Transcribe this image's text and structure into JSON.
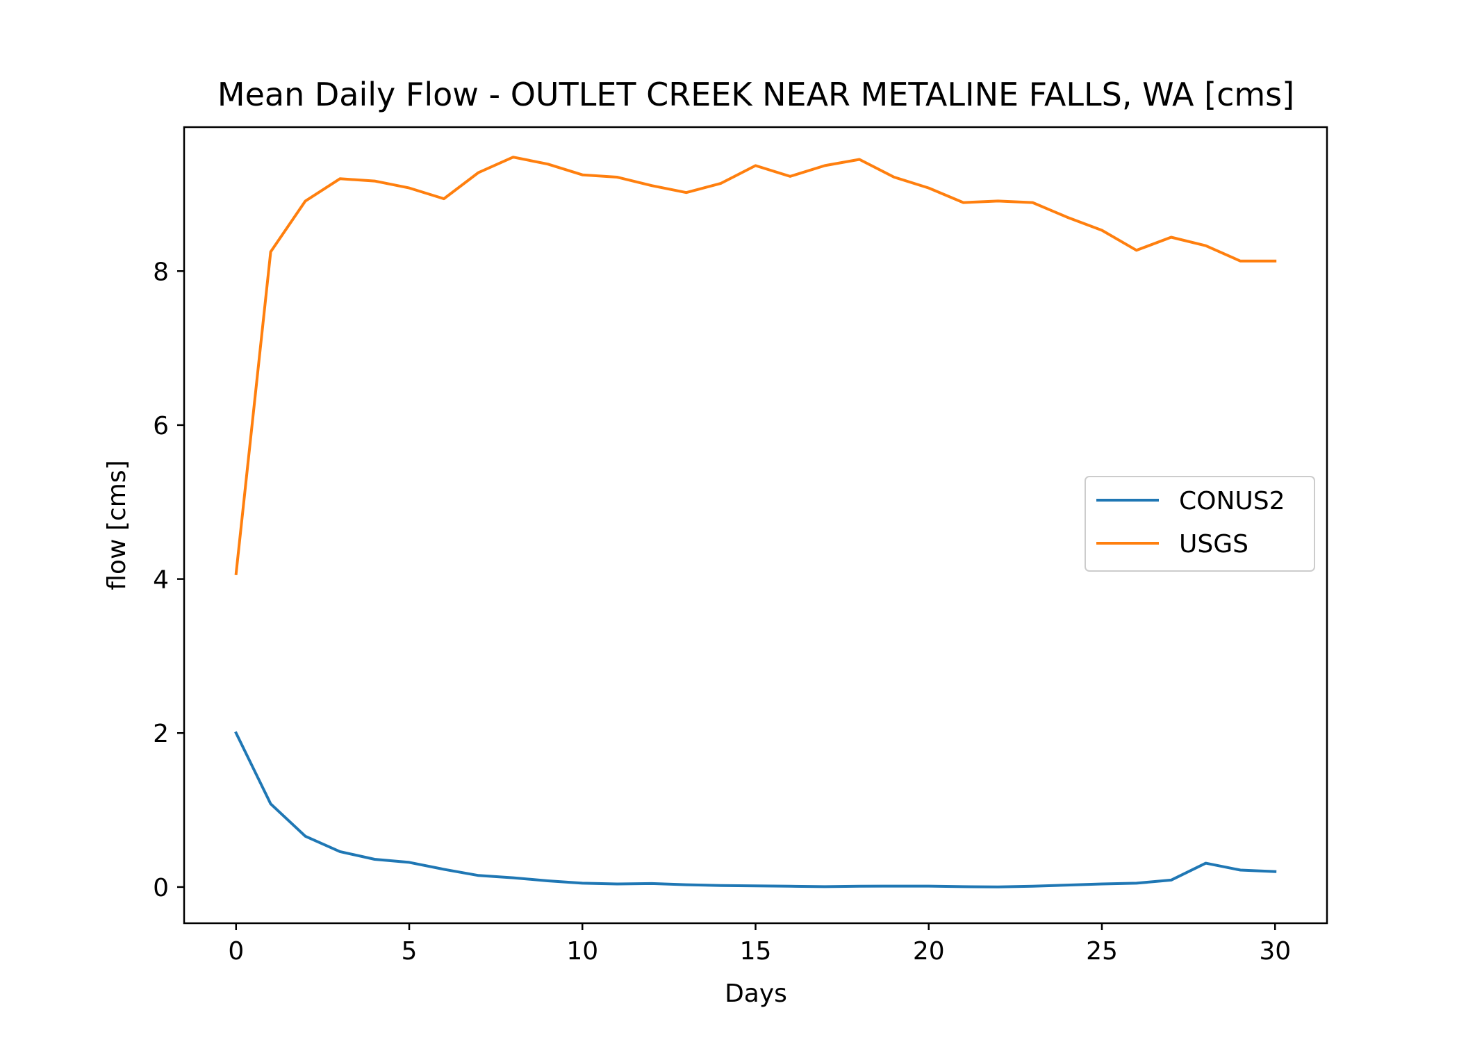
{
  "chart_data": {
    "type": "line",
    "title": "Mean Daily Flow - OUTLET CREEK NEAR METALINE FALLS, WA [cms]",
    "xlabel": "Days",
    "ylabel": "flow [cms]",
    "xlim": [
      -1.5,
      31.5
    ],
    "ylim": [
      -0.47,
      9.87
    ],
    "xticks": [
      0,
      5,
      10,
      15,
      20,
      25,
      30
    ],
    "xtick_labels": [
      "0",
      "5",
      "10",
      "15",
      "20",
      "25",
      "30"
    ],
    "yticks": [
      0,
      2,
      4,
      6,
      8
    ],
    "ytick_labels": [
      "0",
      "2",
      "4",
      "6",
      "8"
    ],
    "grid": false,
    "legend_position": "center-right",
    "x": [
      0,
      1,
      2,
      3,
      4,
      5,
      6,
      7,
      8,
      9,
      10,
      11,
      12,
      13,
      14,
      15,
      16,
      17,
      18,
      19,
      20,
      21,
      22,
      23,
      24,
      25,
      26,
      27,
      28,
      29,
      30
    ],
    "series": [
      {
        "name": "CONUS2",
        "color": "#1f77b4",
        "values": [
          2.0,
          1.08,
          0.66,
          0.46,
          0.36,
          0.32,
          0.23,
          0.15,
          0.12,
          0.08,
          0.05,
          0.04,
          0.045,
          0.03,
          0.02,
          0.015,
          0.01,
          0.005,
          0.01,
          0.012,
          0.012,
          0.005,
          0.002,
          0.01,
          0.025,
          0.04,
          0.05,
          0.09,
          0.31,
          0.22,
          0.2
        ]
      },
      {
        "name": "USGS",
        "color": "#ff7f0e",
        "values": [
          4.07,
          8.25,
          8.91,
          9.2,
          9.17,
          9.08,
          8.94,
          9.28,
          9.48,
          9.39,
          9.25,
          9.22,
          9.11,
          9.02,
          9.14,
          9.37,
          9.23,
          9.37,
          9.45,
          9.22,
          9.08,
          8.89,
          8.91,
          8.89,
          8.7,
          8.53,
          8.27,
          8.44,
          8.33,
          8.13,
          8.13
        ]
      }
    ]
  }
}
